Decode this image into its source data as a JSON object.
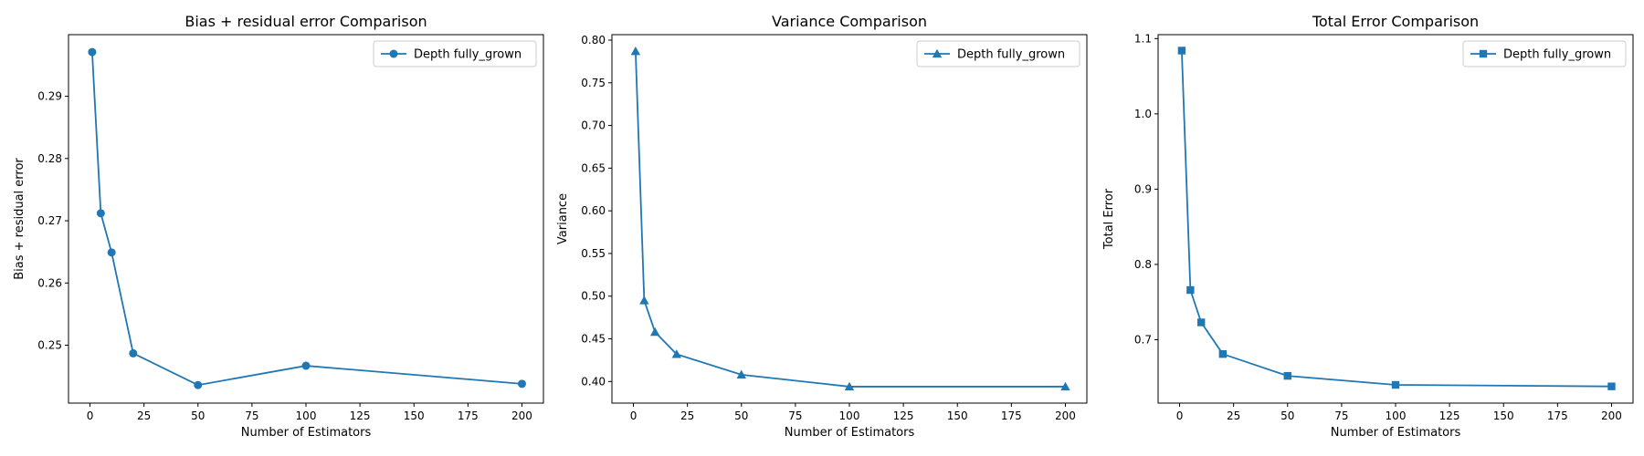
{
  "chart_data": [
    {
      "type": "line",
      "title": "Bias + residual error Comparison",
      "xlabel": "Number of Estimators",
      "ylabel": "Bias + residual error",
      "xlim": [
        -9.95,
        209.95
      ],
      "ylim": [
        0.2407,
        0.2999
      ],
      "xticks": [
        0,
        25,
        50,
        75,
        100,
        125,
        150,
        175,
        200
      ],
      "yticks": [
        0.25,
        0.26,
        0.27,
        0.28,
        0.29
      ],
      "ytick_labels": [
        "0.25",
        "0.26",
        "0.27",
        "0.28",
        "0.29"
      ],
      "legend_position": "top-right",
      "grid": false,
      "series": [
        {
          "name": "Depth fully_grown",
          "marker": "circle",
          "color": "#1f77b4",
          "x": [
            1,
            5,
            10,
            20,
            50,
            100,
            200
          ],
          "y": [
            0.2971,
            0.2712,
            0.2649,
            0.2487,
            0.2436,
            0.2467,
            0.2438
          ]
        }
      ]
    },
    {
      "type": "line",
      "title": "Variance Comparison",
      "xlabel": "Number of Estimators",
      "ylabel": "Variance",
      "xlim": [
        -9.95,
        209.95
      ],
      "ylim": [
        0.3747,
        0.8064
      ],
      "xticks": [
        0,
        25,
        50,
        75,
        100,
        125,
        150,
        175,
        200
      ],
      "yticks": [
        0.4,
        0.45,
        0.5,
        0.55,
        0.6,
        0.65,
        0.7,
        0.75,
        0.8
      ],
      "ytick_labels": [
        "0.40",
        "0.45",
        "0.50",
        "0.55",
        "0.60",
        "0.65",
        "0.70",
        "0.75",
        "0.80"
      ],
      "legend_position": "top-right",
      "grid": false,
      "series": [
        {
          "name": "Depth fully_grown",
          "marker": "triangle",
          "color": "#1f77b4",
          "x": [
            1,
            5,
            10,
            20,
            50,
            100,
            200
          ],
          "y": [
            0.787,
            0.495,
            0.458,
            0.432,
            0.408,
            0.394,
            0.394
          ]
        }
      ]
    },
    {
      "type": "line",
      "title": "Total Error Comparison",
      "xlabel": "Number of Estimators",
      "ylabel": "Total Error",
      "xlim": [
        -9.95,
        209.95
      ],
      "ylim": [
        0.6158,
        1.1052
      ],
      "xticks": [
        0,
        25,
        50,
        75,
        100,
        125,
        150,
        175,
        200
      ],
      "yticks": [
        0.7,
        0.8,
        0.9,
        1.0,
        1.1
      ],
      "ytick_labels": [
        "0.7",
        "0.8",
        "0.9",
        "1.0",
        "1.1"
      ],
      "legend_position": "top-right",
      "grid": false,
      "series": [
        {
          "name": "Depth fully_grown",
          "marker": "square",
          "color": "#1f77b4",
          "x": [
            1,
            5,
            10,
            20,
            50,
            100,
            200
          ],
          "y": [
            1.084,
            0.766,
            0.723,
            0.681,
            0.652,
            0.64,
            0.638
          ]
        }
      ]
    }
  ]
}
